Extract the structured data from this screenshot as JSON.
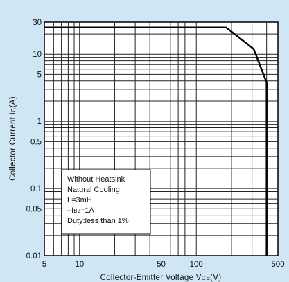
{
  "chart_data": {
    "type": "line",
    "title": "",
    "xlabel_parts": [
      "Collector-Emitter Voltage V",
      "CE",
      "(V)"
    ],
    "ylabel_parts": [
      "Collector Current I",
      "C",
      "(A)"
    ],
    "x_scale": "log",
    "y_scale": "log",
    "xlim": [
      5,
      500
    ],
    "ylim": [
      0.01,
      30
    ],
    "x_ticks": [
      {
        "value": 5,
        "label": "5"
      },
      {
        "value": 10,
        "label": "10"
      },
      {
        "value": 50,
        "label": "50"
      },
      {
        "value": 100,
        "label": "100"
      },
      {
        "value": 500,
        "label": "500"
      }
    ],
    "y_ticks": [
      {
        "value": 30,
        "label": "30"
      },
      {
        "value": 10,
        "label": "10"
      },
      {
        "value": 5,
        "label": "5"
      },
      {
        "value": 1,
        "label": "1"
      },
      {
        "value": 0.5,
        "label": "0.5"
      },
      {
        "value": 0.1,
        "label": "0.1"
      },
      {
        "value": 0.05,
        "label": "0.05"
      },
      {
        "value": 0.01,
        "label": "0.01"
      }
    ],
    "grid": true,
    "series": [
      {
        "x": [
          5,
          180,
          310,
          400,
          400
        ],
        "y": [
          25,
          25,
          12,
          3.8,
          0.01
        ]
      }
    ],
    "annotations": [
      "Without Heatsink",
      "Natural Cooling",
      "L=3mH",
      "–IB2=1A",
      "Duty:less than 1%"
    ]
  },
  "colors": {
    "background": "#cfe6f5",
    "plot": "#ffffff",
    "grid": "#222222",
    "curve": "#000000"
  }
}
